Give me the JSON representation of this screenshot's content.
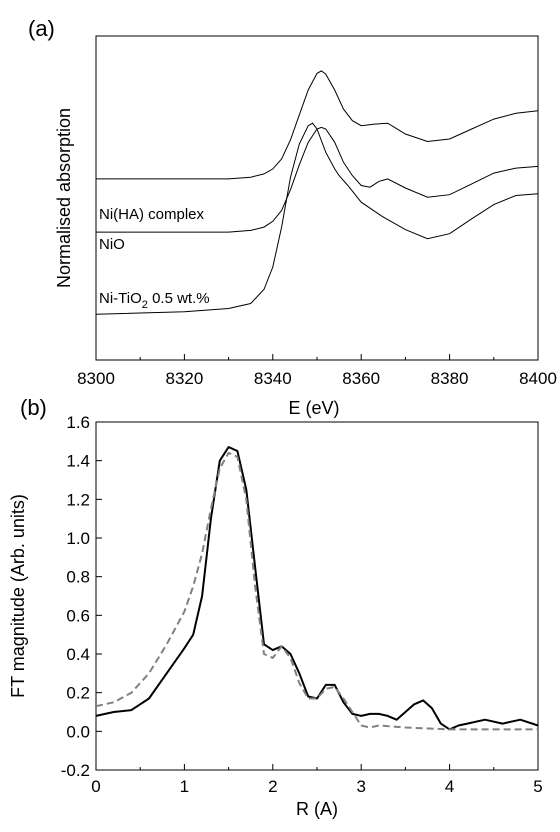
{
  "chart_data": [
    {
      "type": "line",
      "panel_label": "(a)",
      "xlabel": "E (eV)",
      "ylabel": "Normalised absorption",
      "xlim": [
        8300,
        8400
      ],
      "xticks": [
        8300,
        8320,
        8340,
        8360,
        8380,
        8400
      ],
      "y_ticks_shown": false,
      "grid": false,
      "series": [
        {
          "name": "Ni(HA) complex",
          "x": [
            8330,
            8335,
            8338,
            8340,
            8342,
            8344,
            8346,
            8348,
            8350,
            8351,
            8352,
            8354,
            8356,
            8358,
            8360,
            8363,
            8366,
            8370,
            8375,
            8380,
            8385,
            8390,
            8395,
            8400
          ],
          "y": [
            2.18,
            2.2,
            2.24,
            2.3,
            2.42,
            2.65,
            2.95,
            3.25,
            3.45,
            3.48,
            3.44,
            3.25,
            3.02,
            2.88,
            2.82,
            2.84,
            2.85,
            2.72,
            2.63,
            2.66,
            2.78,
            2.9,
            2.97,
            3.0
          ]
        },
        {
          "name": "NiO",
          "x": [
            8330,
            8335,
            8338,
            8340,
            8342,
            8344,
            8346,
            8348,
            8350,
            8351,
            8352,
            8354,
            8356,
            8358,
            8360,
            8362,
            8364,
            8366,
            8370,
            8375,
            8380,
            8385,
            8390,
            8395,
            8400
          ],
          "y": [
            1.54,
            1.56,
            1.6,
            1.67,
            1.8,
            2.05,
            2.35,
            2.62,
            2.78,
            2.8,
            2.78,
            2.62,
            2.38,
            2.22,
            2.1,
            2.08,
            2.15,
            2.18,
            2.07,
            1.96,
            1.99,
            2.12,
            2.25,
            2.31,
            2.33
          ]
        },
        {
          "name": "Ni-TiO2 0.5 wt.%",
          "x": [
            8300,
            8320,
            8330,
            8335,
            8338,
            8340,
            8342,
            8344,
            8346,
            8348,
            8349,
            8350,
            8352,
            8354,
            8355,
            8357,
            8360,
            8365,
            8370,
            8375,
            8380,
            8385,
            8390,
            8395,
            8400
          ],
          "y": [
            0.55,
            0.58,
            0.62,
            0.68,
            0.85,
            1.12,
            1.6,
            2.2,
            2.6,
            2.82,
            2.85,
            2.78,
            2.5,
            2.3,
            2.22,
            2.1,
            1.9,
            1.72,
            1.57,
            1.46,
            1.52,
            1.7,
            1.87,
            1.98,
            2.0
          ]
        }
      ],
      "annotations": [
        {
          "text": "Ni(HA) complex",
          "at_series": "Ni(HA) complex"
        },
        {
          "text": "NiO",
          "at_series": "NiO"
        },
        {
          "text_main": "Ni-TiO",
          "text_sub": "2",
          "text_tail": " 0.5 wt.%",
          "at_series": "Ni-TiO2 0.5 wt.%"
        }
      ]
    },
    {
      "type": "line",
      "panel_label": "(b)",
      "xlabel": "R (A)",
      "ylabel": "FT magnitude (Arb. units)",
      "xlim": [
        0,
        5
      ],
      "ylim": [
        -0.2,
        1.6
      ],
      "xticks": [
        0,
        1,
        2,
        3,
        4,
        5
      ],
      "yticks": [
        -0.2,
        0.0,
        0.2,
        0.4,
        0.6,
        0.8,
        1.0,
        1.2,
        1.4,
        1.6
      ],
      "ytick_labels": [
        "-0.2",
        "0.0",
        "0.2",
        "0.4",
        "0.6",
        "0.8",
        "1.0",
        "1.2",
        "1.4",
        "1.6"
      ],
      "grid": false,
      "series": [
        {
          "style": "solid",
          "color": "#000000",
          "x": [
            0,
            0.2,
            0.4,
            0.6,
            0.8,
            1.0,
            1.1,
            1.2,
            1.3,
            1.4,
            1.5,
            1.6,
            1.7,
            1.8,
            1.9,
            2.0,
            2.1,
            2.2,
            2.3,
            2.4,
            2.5,
            2.6,
            2.7,
            2.8,
            2.9,
            3.0,
            3.1,
            3.2,
            3.3,
            3.4,
            3.5,
            3.6,
            3.7,
            3.8,
            3.9,
            4.0,
            4.1,
            4.2,
            4.4,
            4.6,
            4.8,
            5.0
          ],
          "y": [
            0.08,
            0.1,
            0.11,
            0.17,
            0.3,
            0.43,
            0.5,
            0.7,
            1.1,
            1.4,
            1.47,
            1.45,
            1.25,
            0.85,
            0.45,
            0.42,
            0.44,
            0.4,
            0.3,
            0.18,
            0.17,
            0.24,
            0.24,
            0.15,
            0.09,
            0.08,
            0.09,
            0.09,
            0.08,
            0.06,
            0.1,
            0.14,
            0.16,
            0.12,
            0.04,
            0.01,
            0.03,
            0.04,
            0.06,
            0.04,
            0.06,
            0.03
          ]
        },
        {
          "style": "dashed",
          "color": "#808080",
          "x": [
            0,
            0.2,
            0.4,
            0.6,
            0.8,
            1.0,
            1.1,
            1.2,
            1.3,
            1.4,
            1.5,
            1.6,
            1.7,
            1.8,
            1.9,
            2.0,
            2.1,
            2.2,
            2.3,
            2.4,
            2.5,
            2.6,
            2.7,
            2.8,
            2.9,
            3.0,
            3.1,
            3.2,
            3.5,
            4.0,
            4.5,
            5.0
          ],
          "y": [
            0.13,
            0.15,
            0.2,
            0.3,
            0.45,
            0.62,
            0.75,
            0.92,
            1.15,
            1.36,
            1.44,
            1.42,
            1.2,
            0.75,
            0.4,
            0.38,
            0.44,
            0.38,
            0.25,
            0.17,
            0.17,
            0.22,
            0.23,
            0.17,
            0.1,
            0.03,
            0.02,
            0.03,
            0.02,
            0.01,
            0.01,
            0.01
          ]
        }
      ]
    }
  ]
}
